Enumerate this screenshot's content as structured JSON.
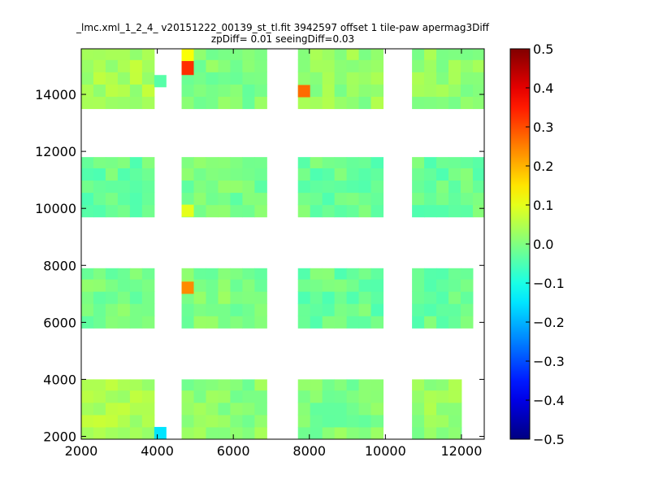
{
  "chart_data": {
    "type": "heatmap",
    "title": "_lmc.xml_1_2_4_ v20151222_00139_st_tl.fit 3942597 offset 1 tile-paw apermag3Diff",
    "subtitle": "zpDiff= 0.01 seeingDiff=0.03",
    "xlabel": "",
    "ylabel": "",
    "xlim": [
      2000,
      12600
    ],
    "ylim": [
      1900,
      15600
    ],
    "x_ticks": [
      "2000",
      "4000",
      "6000",
      "8000",
      "10000",
      "12000"
    ],
    "y_ticks": [
      "2000",
      "4000",
      "6000",
      "8000",
      "10000",
      "12000",
      "14000"
    ],
    "grid": false,
    "colorbar": {
      "colormap": "jet",
      "range": [
        -0.5,
        0.5
      ],
      "ticks": [
        "0.5",
        "0.4",
        "0.3",
        "0.2",
        "0.1",
        "0.0",
        "−0.1",
        "−0.2",
        "−0.3",
        "−0.4",
        "−0.5"
      ]
    },
    "cell_size": [
      320,
      430
    ],
    "cell_value_default": 0.0,
    "blocks": [
      {
        "x_range": [
          2000,
          3920
        ],
        "y_range": [
          13500,
          15600
        ],
        "value": 0.04
      },
      {
        "x_range": [
          4640,
          6880
        ],
        "y_range": [
          13500,
          15600
        ],
        "value": 0.0
      },
      {
        "x_range": [
          7700,
          9940
        ],
        "y_range": [
          13500,
          15600
        ],
        "value": 0.02
      },
      {
        "x_range": [
          10700,
          12600
        ],
        "y_range": [
          13500,
          15600
        ],
        "value": 0.02
      },
      {
        "x_range": [
          2000,
          3920
        ],
        "y_range": [
          9700,
          11800
        ],
        "value": -0.02
      },
      {
        "x_range": [
          4640,
          6880
        ],
        "y_range": [
          9700,
          11800
        ],
        "value": -0.01
      },
      {
        "x_range": [
          7700,
          9940
        ],
        "y_range": [
          9700,
          11800
        ],
        "value": -0.02
      },
      {
        "x_range": [
          10700,
          12600
        ],
        "y_range": [
          9700,
          11800
        ],
        "value": -0.02
      },
      {
        "x_range": [
          2000,
          3920
        ],
        "y_range": [
          5800,
          7900
        ],
        "value": -0.01
      },
      {
        "x_range": [
          4640,
          6880
        ],
        "y_range": [
          5800,
          7900
        ],
        "value": 0.0
      },
      {
        "x_range": [
          7700,
          9940
        ],
        "y_range": [
          5800,
          7900
        ],
        "value": -0.02
      },
      {
        "x_range": [
          10700,
          12300
        ],
        "y_range": [
          5800,
          7900
        ],
        "value": -0.02
      },
      {
        "x_range": [
          2000,
          3920
        ],
        "y_range": [
          1900,
          4000
        ],
        "value": 0.05
      },
      {
        "x_range": [
          4640,
          6880
        ],
        "y_range": [
          1900,
          4000
        ],
        "value": 0.01
      },
      {
        "x_range": [
          7700,
          9940
        ],
        "y_range": [
          1900,
          4000
        ],
        "value": 0.0
      },
      {
        "x_range": [
          10700,
          12000
        ],
        "y_range": [
          1900,
          4000
        ],
        "value": 0.02
      },
      {
        "x_range": [
          3920,
          4240
        ],
        "y_range": [
          14250,
          14680
        ],
        "value": -0.04
      },
      {
        "x_range": [
          4640,
          4960
        ],
        "y_range": [
          15170,
          15600
        ],
        "value": 0.12
      },
      {
        "x_range": [
          4640,
          4960
        ],
        "y_range": [
          14680,
          15170
        ],
        "value": 0.33
      },
      {
        "x_range": [
          7700,
          8020
        ],
        "y_range": [
          13900,
          14330
        ],
        "value": 0.27
      },
      {
        "x_range": [
          4640,
          4960
        ],
        "y_range": [
          9700,
          10130
        ],
        "value": 0.1
      },
      {
        "x_range": [
          4640,
          4960
        ],
        "y_range": [
          7000,
          7430
        ],
        "value": 0.24
      },
      {
        "x_range": [
          3920,
          4240
        ],
        "y_range": [
          1900,
          2330
        ],
        "value": -0.15
      }
    ]
  }
}
